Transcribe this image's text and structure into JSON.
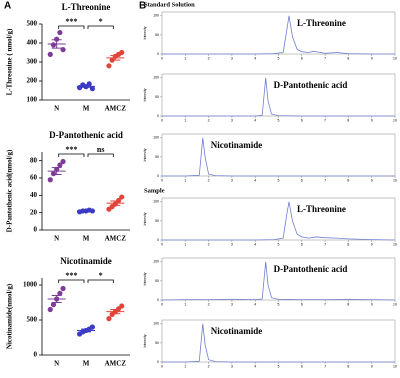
{
  "panel_labels": [
    "A",
    "B"
  ],
  "chart_data": [
    {
      "type": "dot",
      "title": "L-Threonine",
      "y_label": "L-Threonine ( nmol/g)",
      "categories": [
        "N",
        "M",
        "AMCZ"
      ],
      "colors": [
        "#7d3c98",
        "#3b3bc4",
        "#e0453a"
      ],
      "points": [
        [
          340,
          390,
          420,
          455,
          365
        ],
        [
          165,
          180,
          170,
          185,
          160
        ],
        [
          280,
          310,
          330,
          340,
          350
        ]
      ],
      "means": [
        395,
        172,
        322
      ],
      "errors": [
        22,
        5,
        12
      ],
      "ylim": [
        100,
        500
      ],
      "yticks": [
        100,
        200,
        300,
        400,
        500
      ],
      "significance": [
        "***",
        "*"
      ]
    },
    {
      "type": "dot",
      "title": "D-Pantothenic acid",
      "y_label": "D-Pantothenic acid(nmol/g)",
      "categories": [
        "N",
        "M",
        "AMCZ"
      ],
      "colors": [
        "#7d3c98",
        "#3b3bc4",
        "#e0453a"
      ],
      "points": [
        [
          58,
          65,
          70,
          75,
          79
        ],
        [
          21,
          22,
          22,
          23,
          22
        ],
        [
          24,
          27,
          30,
          34,
          38
        ]
      ],
      "means": [
        68,
        22,
        31
      ],
      "errors": [
        4,
        0.4,
        2.5
      ],
      "ylim": [
        0,
        90
      ],
      "yticks": [
        0,
        20,
        40,
        60,
        80
      ],
      "significance": [
        "***",
        "ns"
      ]
    },
    {
      "type": "dot",
      "title": "Nicotinamide",
      "y_label": "Nicotinamide(nmol/g)",
      "categories": [
        "N",
        "M",
        "AMCZ"
      ],
      "colors": [
        "#7d3c98",
        "#3b3bc4",
        "#e0453a"
      ],
      "points": [
        [
          650,
          720,
          800,
          880,
          950
        ],
        [
          300,
          330,
          350,
          370,
          400
        ],
        [
          520,
          580,
          620,
          660,
          700
        ]
      ],
      "means": [
        800,
        350,
        620
      ],
      "errors": [
        50,
        20,
        30
      ],
      "ylim": [
        0,
        1100
      ],
      "yticks": [
        0,
        500,
        1000
      ],
      "significance": [
        "***",
        "*"
      ]
    },
    {
      "type": "line",
      "section_title": "Standard Solution",
      "peak_label": "L-Threonine",
      "y_label": "Intensity",
      "color": "#6f7fd0",
      "x": [
        0,
        1,
        2,
        3,
        4,
        4.8,
        5.2,
        5.35,
        5.45,
        5.6,
        5.8,
        6,
        6.3,
        6.5,
        7,
        7.5,
        8,
        9,
        10
      ],
      "values": [
        0,
        0,
        0,
        0,
        0,
        1,
        4,
        60,
        100,
        45,
        12,
        6,
        4,
        7,
        2,
        4,
        1,
        0,
        0
      ],
      "xlim": [
        0,
        10
      ],
      "ylim": [
        0,
        110
      ],
      "xticks": [
        0,
        1,
        2,
        3,
        4,
        5,
        6,
        7,
        8,
        9,
        10
      ],
      "yticks": [
        0,
        50,
        100
      ]
    },
    {
      "type": "line",
      "peak_label": "D-Pantothenic acid",
      "y_label": "Intensity",
      "color": "#6f7fd0",
      "x": [
        0,
        1,
        2,
        3,
        4,
        4.3,
        4.45,
        4.55,
        4.7,
        5,
        6,
        7,
        8,
        9,
        10
      ],
      "values": [
        0,
        0,
        0,
        0,
        0,
        2,
        100,
        40,
        5,
        1,
        0,
        0,
        0,
        0,
        0
      ],
      "xlim": [
        0,
        10
      ],
      "ylim": [
        0,
        110
      ],
      "xticks": [
        0,
        1,
        2,
        3,
        4,
        5,
        6,
        7,
        8,
        9,
        10
      ],
      "yticks": [
        0,
        50,
        100
      ]
    },
    {
      "type": "line",
      "peak_label": "Nicotinamide",
      "y_label": "Intensity",
      "color": "#6f7fd0",
      "x": [
        0,
        1,
        1.6,
        1.75,
        1.85,
        2,
        2.3,
        3,
        4,
        5,
        6,
        7,
        8,
        9,
        10
      ],
      "values": [
        0,
        0,
        2,
        100,
        50,
        5,
        1,
        0,
        0,
        0,
        0,
        0,
        0,
        0,
        0
      ],
      "xlim": [
        0,
        10
      ],
      "ylim": [
        0,
        110
      ],
      "xticks": [
        0,
        1,
        2,
        3,
        4,
        5,
        6,
        7,
        8,
        9,
        10
      ],
      "yticks": [
        0,
        50,
        100
      ]
    },
    {
      "type": "line",
      "section_title": "Sample",
      "peak_label": "L-Threonine",
      "y_label": "Intensity",
      "color": "#6f7fd0",
      "x": [
        0,
        1,
        2,
        3,
        4,
        4.8,
        5.2,
        5.35,
        5.45,
        5.6,
        5.8,
        6,
        6.3,
        6.6,
        7,
        7.5,
        8,
        9,
        10
      ],
      "values": [
        0,
        0,
        0,
        0,
        0,
        1,
        5,
        65,
        100,
        50,
        15,
        8,
        5,
        8,
        6,
        5,
        3,
        1,
        0
      ],
      "xlim": [
        0,
        10
      ],
      "ylim": [
        0,
        110
      ],
      "xticks": [
        0,
        1,
        2,
        3,
        4,
        5,
        6,
        7,
        8,
        9,
        10
      ],
      "yticks": [
        0,
        50,
        100
      ]
    },
    {
      "type": "line",
      "peak_label": "D-Pantothenic acid",
      "y_label": "Intensity",
      "color": "#6f7fd0",
      "x": [
        0,
        1,
        2,
        3,
        4,
        4.3,
        4.45,
        4.55,
        4.7,
        5,
        6,
        7,
        8,
        9,
        10
      ],
      "values": [
        0,
        1,
        1,
        2,
        1,
        3,
        100,
        40,
        6,
        2,
        1,
        1,
        2,
        1,
        0
      ],
      "xlim": [
        0,
        10
      ],
      "ylim": [
        0,
        110
      ],
      "xticks": [
        0,
        1,
        2,
        3,
        4,
        5,
        6,
        7,
        8,
        9,
        10
      ],
      "yticks": [
        0,
        50,
        100
      ]
    },
    {
      "type": "line",
      "peak_label": "Nicotinamide",
      "y_label": "Intensity",
      "color": "#6f7fd0",
      "x": [
        0,
        1,
        1.6,
        1.75,
        1.85,
        2,
        2.3,
        3,
        4,
        5,
        6,
        7,
        8,
        9,
        10
      ],
      "values": [
        0,
        0,
        2,
        100,
        45,
        6,
        1,
        0,
        0,
        0,
        0,
        0,
        0,
        0,
        0
      ],
      "xlim": [
        0,
        10
      ],
      "ylim": [
        0,
        110
      ],
      "xticks": [
        0,
        1,
        2,
        3,
        4,
        5,
        6,
        7,
        8,
        9,
        10
      ],
      "yticks": [
        0,
        50,
        100
      ]
    }
  ]
}
